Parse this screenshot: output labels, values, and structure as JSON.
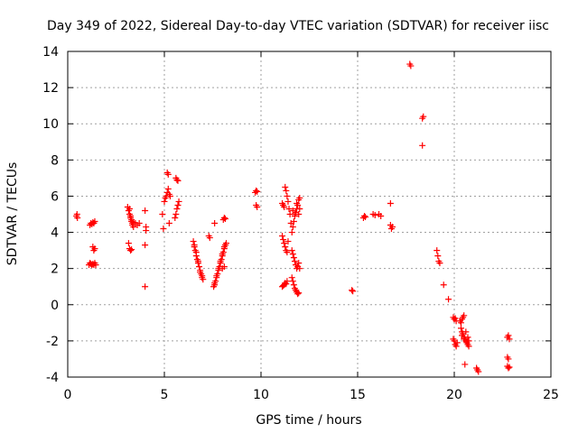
{
  "chart_data": {
    "type": "scatter",
    "title": "Day 349 of 2022, Sidereal Day-to-day VTEC variation (SDTVAR) for receiver iisc",
    "xlabel": "GPS time / hours",
    "ylabel": "SDTVAR / TECUs",
    "xlim": [
      0,
      25
    ],
    "ylim": [
      -4,
      14
    ],
    "xticks": [
      0,
      5,
      10,
      15,
      20,
      25
    ],
    "yticks": [
      -4,
      -2,
      0,
      2,
      4,
      6,
      8,
      10,
      12,
      14
    ],
    "grid": true,
    "marker": "+",
    "marker_color": "#ff0000",
    "series": [
      {
        "name": "SDTVAR",
        "points": [
          [
            0.45,
            4.9
          ],
          [
            0.48,
            5.0
          ],
          [
            0.5,
            4.8
          ],
          [
            1.1,
            2.2
          ],
          [
            1.15,
            2.3
          ],
          [
            1.2,
            2.25
          ],
          [
            1.25,
            2.2
          ],
          [
            1.3,
            2.25
          ],
          [
            1.35,
            2.2
          ],
          [
            1.4,
            2.3
          ],
          [
            1.45,
            2.2
          ],
          [
            1.15,
            4.4
          ],
          [
            1.2,
            4.5
          ],
          [
            1.25,
            4.45
          ],
          [
            1.3,
            4.55
          ],
          [
            1.35,
            4.5
          ],
          [
            1.4,
            4.6
          ],
          [
            1.3,
            3.2
          ],
          [
            1.35,
            3.0
          ],
          [
            1.4,
            3.1
          ],
          [
            3.1,
            5.4
          ],
          [
            3.15,
            5.2
          ],
          [
            3.2,
            5.0
          ],
          [
            3.25,
            4.8
          ],
          [
            3.3,
            4.6
          ],
          [
            3.35,
            4.5
          ],
          [
            3.4,
            4.55
          ],
          [
            3.5,
            4.5
          ],
          [
            3.6,
            4.4
          ],
          [
            3.7,
            4.5
          ],
          [
            3.2,
            5.3
          ],
          [
            3.25,
            4.9
          ],
          [
            3.3,
            4.7
          ],
          [
            3.35,
            4.4
          ],
          [
            3.4,
            4.3
          ],
          [
            3.15,
            3.4
          ],
          [
            3.2,
            3.1
          ],
          [
            3.25,
            3.0
          ],
          [
            3.3,
            3.05
          ],
          [
            4.0,
            5.2
          ],
          [
            4.05,
            4.3
          ],
          [
            4.05,
            4.1
          ],
          [
            4.0,
            3.3
          ],
          [
            4.0,
            1.0
          ],
          [
            4.9,
            5.0
          ],
          [
            4.95,
            4.2
          ],
          [
            5.0,
            5.7
          ],
          [
            5.05,
            5.9
          ],
          [
            5.1,
            6.0
          ],
          [
            5.15,
            6.2
          ],
          [
            5.2,
            6.4
          ],
          [
            5.25,
            6.1
          ],
          [
            5.3,
            6.0
          ],
          [
            5.15,
            7.3
          ],
          [
            5.2,
            7.2
          ],
          [
            5.25,
            4.5
          ],
          [
            5.55,
            4.8
          ],
          [
            5.6,
            5.0
          ],
          [
            5.65,
            5.3
          ],
          [
            5.7,
            5.5
          ],
          [
            5.75,
            5.7
          ],
          [
            5.6,
            7.0
          ],
          [
            5.65,
            6.9
          ],
          [
            5.7,
            6.85
          ],
          [
            6.5,
            3.5
          ],
          [
            6.55,
            3.2
          ],
          [
            6.6,
            3.0
          ],
          [
            6.65,
            2.7
          ],
          [
            6.7,
            2.5
          ],
          [
            6.75,
            2.3
          ],
          [
            6.8,
            2.1
          ],
          [
            6.85,
            1.9
          ],
          [
            6.9,
            1.7
          ],
          [
            6.95,
            1.5
          ],
          [
            7.0,
            1.4
          ],
          [
            6.55,
            3.3
          ],
          [
            6.65,
            2.9
          ],
          [
            6.75,
            2.4
          ],
          [
            6.85,
            1.8
          ],
          [
            6.95,
            1.6
          ],
          [
            7.3,
            3.8
          ],
          [
            7.35,
            3.7
          ],
          [
            7.6,
            4.5
          ],
          [
            7.55,
            1.0
          ],
          [
            7.6,
            1.1
          ],
          [
            7.65,
            1.3
          ],
          [
            7.7,
            1.5
          ],
          [
            7.75,
            1.7
          ],
          [
            7.8,
            1.9
          ],
          [
            7.85,
            2.1
          ],
          [
            7.9,
            2.3
          ],
          [
            7.95,
            2.5
          ],
          [
            8.0,
            2.7
          ],
          [
            8.05,
            2.9
          ],
          [
            8.1,
            3.1
          ],
          [
            8.15,
            3.3
          ],
          [
            8.2,
            3.4
          ],
          [
            7.6,
            1.2
          ],
          [
            7.7,
            1.6
          ],
          [
            7.8,
            2.0
          ],
          [
            7.9,
            2.4
          ],
          [
            8.0,
            2.8
          ],
          [
            8.1,
            3.2
          ],
          [
            8.05,
            4.7
          ],
          [
            8.1,
            4.8
          ],
          [
            8.15,
            4.75
          ],
          [
            8.0,
            2.0
          ],
          [
            8.1,
            2.1
          ],
          [
            9.7,
            6.2
          ],
          [
            9.75,
            6.3
          ],
          [
            9.8,
            6.25
          ],
          [
            9.75,
            5.5
          ],
          [
            9.8,
            5.4
          ],
          [
            11.1,
            5.6
          ],
          [
            11.15,
            5.5
          ],
          [
            11.2,
            5.4
          ],
          [
            11.25,
            6.5
          ],
          [
            11.3,
            6.3
          ],
          [
            11.35,
            6.0
          ],
          [
            11.4,
            5.7
          ],
          [
            11.45,
            5.3
          ],
          [
            11.5,
            5.0
          ],
          [
            11.55,
            4.5
          ],
          [
            11.1,
            1.0
          ],
          [
            11.15,
            1.05
          ],
          [
            11.2,
            1.1
          ],
          [
            11.25,
            1.2
          ],
          [
            11.3,
            1.15
          ],
          [
            11.35,
            1.3
          ],
          [
            11.1,
            3.8
          ],
          [
            11.15,
            3.6
          ],
          [
            11.2,
            3.4
          ],
          [
            11.25,
            3.2
          ],
          [
            11.3,
            3.0
          ],
          [
            11.35,
            2.9
          ],
          [
            11.4,
            3.5
          ],
          [
            11.6,
            3.0
          ],
          [
            11.65,
            2.8
          ],
          [
            11.7,
            2.6
          ],
          [
            11.75,
            2.4
          ],
          [
            11.8,
            2.2
          ],
          [
            11.85,
            2.0
          ],
          [
            11.9,
            2.1
          ],
          [
            11.95,
            2.3
          ],
          [
            12.0,
            2.0
          ],
          [
            11.6,
            1.5
          ],
          [
            11.65,
            1.3
          ],
          [
            11.7,
            1.1
          ],
          [
            11.75,
            0.9
          ],
          [
            11.8,
            0.8
          ],
          [
            11.85,
            0.7
          ],
          [
            11.9,
            0.6
          ],
          [
            11.95,
            0.65
          ],
          [
            11.6,
            4.0
          ],
          [
            11.65,
            4.3
          ],
          [
            11.7,
            4.6
          ],
          [
            11.75,
            4.9
          ],
          [
            11.8,
            5.1
          ],
          [
            11.85,
            5.3
          ],
          [
            11.9,
            5.5
          ],
          [
            11.95,
            5.8
          ],
          [
            12.0,
            5.9
          ],
          [
            11.65,
            5.2
          ],
          [
            11.75,
            5.0
          ],
          [
            11.85,
            5.6
          ],
          [
            11.95,
            5.0
          ],
          [
            12.0,
            5.3
          ],
          [
            14.7,
            0.8
          ],
          [
            14.75,
            0.75
          ],
          [
            15.3,
            4.8
          ],
          [
            15.35,
            4.9
          ],
          [
            15.4,
            4.85
          ],
          [
            15.8,
            5.0
          ],
          [
            15.9,
            4.95
          ],
          [
            16.1,
            5.0
          ],
          [
            16.2,
            4.9
          ],
          [
            16.7,
            4.4
          ],
          [
            16.75,
            4.2
          ],
          [
            16.8,
            4.3
          ],
          [
            16.7,
            5.6
          ],
          [
            17.7,
            13.3
          ],
          [
            17.75,
            13.2
          ],
          [
            18.35,
            10.3
          ],
          [
            18.4,
            10.4
          ],
          [
            18.35,
            8.8
          ],
          [
            19.1,
            3.0
          ],
          [
            19.15,
            2.7
          ],
          [
            19.2,
            2.4
          ],
          [
            19.25,
            2.3
          ],
          [
            19.45,
            1.1
          ],
          [
            19.7,
            0.3
          ],
          [
            19.95,
            -0.7
          ],
          [
            20.0,
            -0.8
          ],
          [
            20.05,
            -0.75
          ],
          [
            20.1,
            -0.9
          ],
          [
            19.95,
            -1.9
          ],
          [
            20.0,
            -2.0
          ],
          [
            20.05,
            -2.2
          ],
          [
            20.1,
            -2.3
          ],
          [
            20.15,
            -2.1
          ],
          [
            20.3,
            -0.9
          ],
          [
            20.35,
            -1.0
          ],
          [
            20.4,
            -0.8
          ],
          [
            20.45,
            -0.7
          ],
          [
            20.5,
            -0.6
          ],
          [
            20.35,
            -1.3
          ],
          [
            20.4,
            -1.5
          ],
          [
            20.45,
            -1.6
          ],
          [
            20.5,
            -1.8
          ],
          [
            20.55,
            -1.9
          ],
          [
            20.6,
            -2.0
          ],
          [
            20.65,
            -2.1
          ],
          [
            20.7,
            -2.2
          ],
          [
            20.75,
            -2.3
          ],
          [
            20.4,
            -1.7
          ],
          [
            20.5,
            -1.9
          ],
          [
            20.6,
            -1.5
          ],
          [
            20.7,
            -1.8
          ],
          [
            20.75,
            -2.0
          ],
          [
            20.55,
            -3.3
          ],
          [
            21.15,
            -3.5
          ],
          [
            21.2,
            -3.6
          ],
          [
            21.25,
            -3.7
          ],
          [
            22.75,
            -1.8
          ],
          [
            22.8,
            -1.7
          ],
          [
            22.85,
            -1.9
          ],
          [
            22.75,
            -2.9
          ],
          [
            22.8,
            -3.0
          ],
          [
            22.75,
            -3.4
          ],
          [
            22.8,
            -3.5
          ],
          [
            22.85,
            -3.45
          ]
        ]
      }
    ]
  }
}
